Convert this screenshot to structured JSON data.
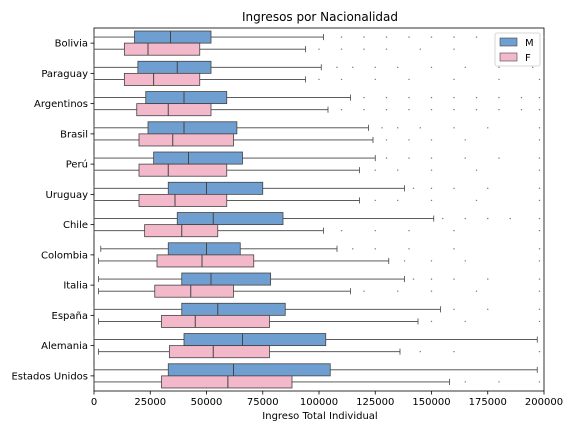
{
  "chart_data": {
    "type": "boxplot",
    "orientation": "horizontal",
    "title": "Ingresos por Nacionalidad",
    "xlabel": "Ingreso Total Individual",
    "ylabel": "",
    "xlim": [
      0,
      200000
    ],
    "xticks": [
      0,
      25000,
      50000,
      75000,
      100000,
      125000,
      150000,
      175000,
      200000
    ],
    "grid": false,
    "legend_position": "top-right",
    "categories": [
      "Bolivia",
      "Paraguay",
      "Argentinos",
      "Brasil",
      "Perú",
      "Uruguay",
      "Chile",
      "Colombia",
      "Italia",
      "España",
      "Alemania",
      "Estados Unidos"
    ],
    "series": [
      {
        "name": "M",
        "color": "#6f9fd0",
        "boxes": [
          {
            "whislo": 0,
            "q1": 18000,
            "med": 34000,
            "q3": 52000,
            "whishi": 102000,
            "fliers": [
              110000,
              120000,
              130000,
              140000,
              150000,
              160000,
              170000,
              180000,
              190000,
              200000
            ]
          },
          {
            "whislo": 0,
            "q1": 19500,
            "med": 37000,
            "q3": 52000,
            "whishi": 101000,
            "fliers": [
              108000,
              115000,
              125000,
              135000,
              150000,
              165000,
              180000,
              195000
            ]
          },
          {
            "whislo": 0,
            "q1": 23000,
            "med": 40000,
            "q3": 59000,
            "whishi": 114000,
            "fliers": [
              120000,
              130000,
              140000,
              150000,
              160000,
              170000,
              180000,
              190000,
              198000
            ]
          },
          {
            "whislo": 0,
            "q1": 24000,
            "med": 40000,
            "q3": 63500,
            "whishi": 122000,
            "fliers": [
              128000,
              135000,
              145000,
              160000,
              175000,
              198000
            ]
          },
          {
            "whislo": 0,
            "q1": 26500,
            "med": 42000,
            "q3": 66000,
            "whishi": 125000,
            "fliers": [
              130000,
              140000,
              150000,
              165000,
              180000,
              198000
            ]
          },
          {
            "whislo": 0,
            "q1": 33000,
            "med": 50000,
            "q3": 75000,
            "whishi": 138000,
            "fliers": [
              142000,
              150000,
              160000,
              175000,
              198000
            ]
          },
          {
            "whislo": 0,
            "q1": 37000,
            "med": 53000,
            "q3": 84000,
            "whishi": 151000,
            "fliers": [
              155000,
              165000,
              175000,
              185000,
              198000
            ]
          },
          {
            "whislo": 3000,
            "q1": 33000,
            "med": 50000,
            "q3": 65000,
            "whishi": 108000,
            "fliers": [
              115000,
              125000,
              140000,
              160000,
              198000
            ]
          },
          {
            "whislo": 2000,
            "q1": 39000,
            "med": 52000,
            "q3": 78500,
            "whishi": 138000,
            "fliers": [
              142000,
              150000,
              160000,
              175000,
              198000
            ]
          },
          {
            "whislo": 0,
            "q1": 39000,
            "med": 55000,
            "q3": 85000,
            "whishi": 154000,
            "fliers": [
              160000,
              175000,
              198000
            ]
          },
          {
            "whislo": 0,
            "q1": 40000,
            "med": 66000,
            "q3": 103000,
            "whishi": 197000,
            "fliers": []
          },
          {
            "whislo": 0,
            "q1": 33000,
            "med": 62000,
            "q3": 105000,
            "whishi": 197000,
            "fliers": []
          }
        ]
      },
      {
        "name": "F",
        "color": "#f3b8ca",
        "boxes": [
          {
            "whislo": 0,
            "q1": 13500,
            "med": 24000,
            "q3": 47000,
            "whishi": 94000,
            "fliers": [
              100000,
              110000,
              120000,
              130000,
              145000,
              160000,
              180000,
              198000
            ]
          },
          {
            "whislo": 0,
            "q1": 13500,
            "med": 26500,
            "q3": 47000,
            "whishi": 94000,
            "fliers": [
              100000,
              110000,
              125000,
              140000,
              160000,
              180000,
              198000
            ]
          },
          {
            "whislo": 0,
            "q1": 19000,
            "med": 33000,
            "q3": 52000,
            "whishi": 104000,
            "fliers": [
              110000,
              120000,
              130000,
              140000,
              150000,
              160000,
              170000,
              180000,
              190000,
              198000
            ]
          },
          {
            "whislo": 0,
            "q1": 20000,
            "med": 35000,
            "q3": 62000,
            "whishi": 124000,
            "fliers": [
              130000,
              140000,
              150000,
              165000,
              198000
            ]
          },
          {
            "whislo": 0,
            "q1": 20000,
            "med": 33000,
            "q3": 59000,
            "whishi": 118000,
            "fliers": [
              125000,
              135000,
              150000,
              170000,
              198000
            ]
          },
          {
            "whislo": 0,
            "q1": 20000,
            "med": 36000,
            "q3": 59000,
            "whishi": 118000,
            "fliers": [
              125000,
              135000,
              150000,
              170000,
              198000
            ]
          },
          {
            "whislo": 0,
            "q1": 22500,
            "med": 39000,
            "q3": 55000,
            "whishi": 102000,
            "fliers": [
              110000,
              125000,
              140000,
              160000,
              198000
            ]
          },
          {
            "whislo": 2000,
            "q1": 28000,
            "med": 48000,
            "q3": 71000,
            "whishi": 131000,
            "fliers": [
              138000,
              150000,
              165000,
              198000
            ]
          },
          {
            "whislo": 2000,
            "q1": 27000,
            "med": 43000,
            "q3": 62000,
            "whishi": 114000,
            "fliers": [
              120000,
              135000,
              150000,
              170000,
              198000
            ]
          },
          {
            "whislo": 2000,
            "q1": 30000,
            "med": 45000,
            "q3": 78000,
            "whishi": 144000,
            "fliers": [
              150000,
              165000,
              198000
            ]
          },
          {
            "whislo": 2000,
            "q1": 33500,
            "med": 53000,
            "q3": 78000,
            "whishi": 136000,
            "fliers": [
              145000,
              160000,
              198000
            ]
          },
          {
            "whislo": 0,
            "q1": 30000,
            "med": 59500,
            "q3": 88000,
            "whishi": 158000,
            "fliers": [
              165000,
              180000,
              198000
            ]
          }
        ]
      }
    ]
  }
}
